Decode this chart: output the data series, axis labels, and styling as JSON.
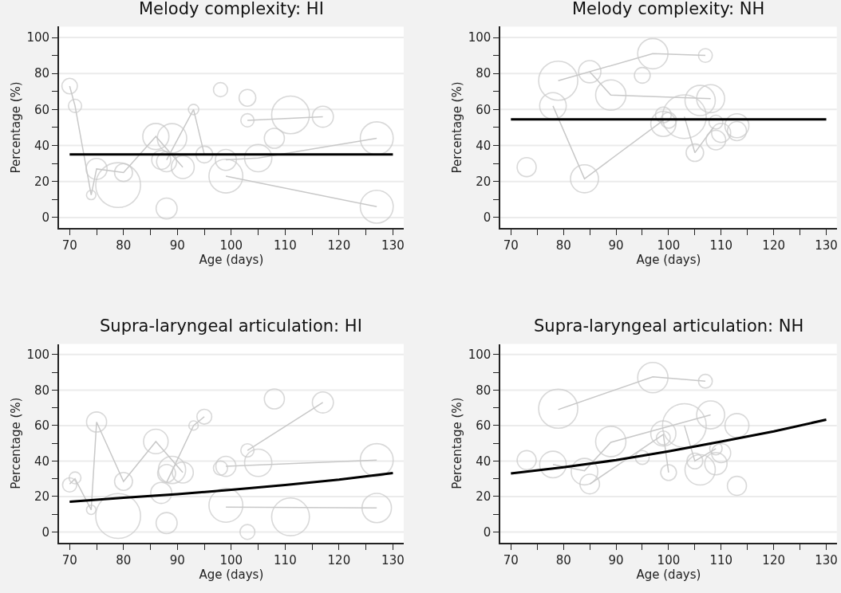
{
  "chart_data": [
    {
      "type": "bubble",
      "title": "Melody complexity: HI",
      "xlabel": "Age (days)",
      "ylabel": "Percentage (%)",
      "xlim": [
        68,
        132
      ],
      "ylim": [
        -6,
        106
      ],
      "xticks": [
        70,
        {
          "value": 75,
          "label": null
        },
        80,
        {
          "value": 85,
          "label": null
        },
        90,
        {
          "value": 95,
          "label": null
        },
        100,
        {
          "value": 105,
          "label": null
        },
        110,
        {
          "value": 115,
          "label": null
        },
        120,
        {
          "value": 125,
          "label": null
        },
        130
      ],
      "yticks": [
        0,
        {
          "value": 10,
          "label": null
        },
        20,
        {
          "value": 30,
          "label": null
        },
        40,
        {
          "value": 50,
          "label": null
        },
        60,
        {
          "value": 70,
          "label": null
        },
        80,
        {
          "value": 90,
          "label": null
        },
        100
      ],
      "grid": "y",
      "series": [
        {
          "color": "#c8c8c8",
          "x": [
            70,
            71,
            74,
            75,
            79,
            80,
            86,
            87,
            88,
            88,
            89,
            91,
            93,
            95,
            98,
            99,
            99,
            103,
            103,
            105,
            108,
            111,
            117,
            127,
            127
          ],
          "values": [
            73,
            62,
            12.5,
            27,
            18,
            25,
            45,
            32,
            31,
            5,
            44,
            28,
            60,
            35,
            71,
            32,
            23,
            66.5,
            54,
            33,
            44,
            57,
            56,
            44,
            6
          ],
          "sizes": [
            0.12,
            0.087,
            0.044,
            0.22,
            1,
            0.16,
            0.34,
            0.18,
            0.2,
            0.22,
            0.43,
            0.26,
            0.054,
            0.14,
            0.1,
            0.22,
            0.57,
            0.14,
            0.087,
            0.37,
            0.2,
            0.71,
            0.22,
            0.54,
            0.54
          ]
        },
        {
          "type": "line",
          "color": "#c8c8c8",
          "x": [
            70,
            71,
            74,
            75,
            80,
            86,
            91
          ],
          "values": [
            73,
            62,
            12.5,
            27,
            25,
            45,
            28
          ]
        },
        {
          "type": "line",
          "color": "#c8c8c8",
          "x": [
            88,
            93,
            95
          ],
          "values": [
            32,
            60,
            35
          ]
        },
        {
          "type": "line",
          "color": "#c8c8c8",
          "x": [
            99,
            105,
            127
          ],
          "values": [
            32,
            33,
            44
          ]
        },
        {
          "type": "line",
          "color": "#c8c8c8",
          "x": [
            99,
            127
          ],
          "values": [
            23,
            6
          ]
        },
        {
          "type": "line",
          "color": "#c8c8c8",
          "x": [
            103,
            117
          ],
          "values": [
            54,
            56
          ]
        },
        {
          "type": "line",
          "color": "#000000",
          "x": [
            70,
            130
          ],
          "values": [
            35,
            35
          ]
        }
      ]
    },
    {
      "type": "bubble",
      "title": "Melody complexity: NH",
      "xlabel": "Age (days)",
      "ylabel": "Percentage (%)",
      "xlim": [
        68,
        132
      ],
      "ylim": [
        -6,
        106
      ],
      "xticks": [
        70,
        {
          "value": 75,
          "label": null
        },
        80,
        {
          "value": 85,
          "label": null
        },
        90,
        {
          "value": 95,
          "label": null
        },
        100,
        {
          "value": 105,
          "label": null
        },
        110,
        {
          "value": 115,
          "label": null
        },
        120,
        {
          "value": 125,
          "label": null
        },
        130
      ],
      "yticks": [
        0,
        {
          "value": 10,
          "label": null
        },
        20,
        {
          "value": 30,
          "label": null
        },
        40,
        {
          "value": 50,
          "label": null
        },
        60,
        {
          "value": 70,
          "label": null
        },
        80,
        {
          "value": 90,
          "label": null
        },
        100
      ],
      "grid": "y",
      "series": [
        {
          "color": "#c8c8c8",
          "x": [
            73,
            78,
            79,
            84,
            85,
            89,
            95,
            97,
            99,
            99,
            100,
            103,
            105,
            106,
            107,
            108,
            109,
            109,
            110,
            113,
            113
          ],
          "values": [
            28,
            62,
            76,
            21.5,
            81,
            68,
            79,
            91,
            57,
            52,
            54,
            56,
            36,
            65,
            90,
            66,
            53,
            43,
            47,
            51,
            48
          ],
          "sizes": [
            0.19,
            0.37,
            0.8,
            0.41,
            0.26,
            0.48,
            0.13,
            0.48,
            0.13,
            0.33,
            0.13,
            1,
            0.16,
            0.48,
            0.1,
            0.41,
            0.1,
            0.2,
            0.19,
            0.3,
            0.19
          ]
        },
        {
          "type": "line",
          "color": "#c8c8c8",
          "x": [
            79,
            97,
            107
          ],
          "values": [
            76,
            91,
            90
          ]
        },
        {
          "type": "line",
          "color": "#c8c8c8",
          "x": [
            85,
            89,
            108
          ],
          "values": [
            81,
            68,
            66
          ]
        },
        {
          "type": "line",
          "color": "#c8c8c8",
          "x": [
            78,
            84,
            99
          ],
          "values": [
            62,
            21.5,
            54
          ]
        },
        {
          "type": "line",
          "color": "#c8c8c8",
          "x": [
            103,
            105,
            108.5
          ],
          "values": [
            56,
            36,
            50
          ]
        },
        {
          "type": "line",
          "color": "#000000",
          "x": [
            70,
            130
          ],
          "values": [
            54.5,
            54.5
          ]
        }
      ]
    },
    {
      "type": "bubble",
      "title": "Supra-laryngeal articulation: HI",
      "xlabel": "Age (days)",
      "ylabel": "Percentage (%)",
      "xlim": [
        68,
        132
      ],
      "ylim": [
        -6,
        106
      ],
      "xticks": [
        70,
        {
          "value": 75,
          "label": null
        },
        80,
        {
          "value": 85,
          "label": null
        },
        90,
        {
          "value": 95,
          "label": null
        },
        100,
        {
          "value": 105,
          "label": null
        },
        110,
        {
          "value": 115,
          "label": null
        },
        120,
        {
          "value": 125,
          "label": null
        },
        130
      ],
      "yticks": [
        0,
        {
          "value": 10,
          "label": null
        },
        20,
        {
          "value": 30,
          "label": null
        },
        40,
        {
          "value": 50,
          "label": null
        },
        60,
        {
          "value": 70,
          "label": null
        },
        80,
        {
          "value": 90,
          "label": null
        },
        100
      ],
      "grid": "y",
      "series": [
        {
          "color": "#c8c8c8",
          "x": [
            70,
            71,
            74,
            75,
            79,
            80,
            86,
            87,
            88,
            88,
            89,
            91,
            93,
            95,
            98,
            99,
            99,
            103,
            103,
            105,
            108,
            111,
            117,
            127,
            127
          ],
          "values": [
            26.5,
            30.5,
            12.5,
            62,
            9,
            28.5,
            51,
            22,
            33,
            5,
            35,
            33.5,
            60,
            65,
            36,
            37,
            15,
            46,
            0,
            39,
            75,
            8.5,
            73,
            40.5,
            13.5
          ],
          "sizes": [
            0.1,
            0.07,
            0.044,
            0.2,
            1,
            0.16,
            0.3,
            0.22,
            0.16,
            0.22,
            0.37,
            0.22,
            0.044,
            0.11,
            0.1,
            0.2,
            0.57,
            0.087,
            0.11,
            0.37,
            0.2,
            0.71,
            0.22,
            0.54,
            0.43
          ]
        },
        {
          "type": "line",
          "color": "#c8c8c8",
          "x": [
            70,
            71,
            74,
            75,
            80,
            86,
            91
          ],
          "values": [
            27,
            30,
            12.5,
            62,
            28.5,
            51,
            33.5
          ]
        },
        {
          "type": "line",
          "color": "#c8c8c8",
          "x": [
            88,
            93,
            95
          ],
          "values": [
            28,
            60,
            65
          ]
        },
        {
          "type": "line",
          "color": "#c8c8c8",
          "x": [
            99,
            127
          ],
          "values": [
            37,
            40.5
          ]
        },
        {
          "type": "line",
          "color": "#c8c8c8",
          "x": [
            99,
            127
          ],
          "values": [
            14,
            13.5
          ]
        },
        {
          "type": "line",
          "color": "#c8c8c8",
          "x": [
            103,
            117
          ],
          "values": [
            46,
            73
          ]
        },
        {
          "type": "line",
          "color": "#000000",
          "x": [
            70,
            80,
            90,
            100,
            110,
            120,
            130
          ],
          "values": [
            17,
            19.3,
            21.3,
            23.8,
            26.5,
            29.5,
            33.2
          ]
        }
      ]
    },
    {
      "type": "bubble",
      "title": "Supra-laryngeal articulation: NH",
      "xlabel": "Age (days)",
      "ylabel": "Percentage (%)",
      "xlim": [
        68,
        132
      ],
      "ylim": [
        -6,
        106
      ],
      "xticks": [
        70,
        {
          "value": 75,
          "label": null
        },
        80,
        {
          "value": 85,
          "label": null
        },
        90,
        {
          "value": 95,
          "label": null
        },
        100,
        {
          "value": 105,
          "label": null
        },
        110,
        {
          "value": 115,
          "label": null
        },
        120,
        {
          "value": 125,
          "label": null
        },
        130
      ],
      "yticks": [
        0,
        {
          "value": 10,
          "label": null
        },
        20,
        {
          "value": 30,
          "label": null
        },
        40,
        {
          "value": 50,
          "label": null
        },
        60,
        {
          "value": 70,
          "label": null
        },
        80,
        {
          "value": 90,
          "label": null
        },
        100
      ],
      "grid": "y",
      "series": [
        {
          "color": "#c8c8c8",
          "x": [
            73,
            78,
            79,
            84,
            85,
            89,
            95,
            97,
            99,
            99,
            100,
            103,
            105,
            106,
            107,
            108,
            109,
            109,
            110,
            113,
            113
          ],
          "values": [
            40.5,
            38,
            69.5,
            34,
            27,
            51,
            42,
            87,
            55.5,
            53,
            33.5,
            60,
            40,
            35,
            85,
            66,
            38.5,
            47,
            44.5,
            60,
            26
          ],
          "sizes": [
            0.19,
            0.37,
            0.8,
            0.37,
            0.2,
            0.48,
            0.1,
            0.48,
            0.33,
            0.1,
            0.13,
            1,
            0.13,
            0.48,
            0.1,
            0.41,
            0.26,
            0.081,
            0.19,
            0.3,
            0.19
          ]
        },
        {
          "type": "line",
          "color": "#c8c8c8",
          "x": [
            79,
            97,
            107
          ],
          "values": [
            69,
            87.5,
            85
          ]
        },
        {
          "type": "line",
          "color": "#c8c8c8",
          "x": [
            78,
            84,
            89,
            108
          ],
          "values": [
            38,
            34.5,
            50.5,
            66
          ]
        },
        {
          "type": "line",
          "color": "#c8c8c8",
          "x": [
            85,
            99,
            100
          ],
          "values": [
            27,
            55,
            33.5
          ]
        },
        {
          "type": "line",
          "color": "#c8c8c8",
          "x": [
            103,
            105,
            109
          ],
          "values": [
            60,
            40,
            47
          ]
        },
        {
          "type": "line",
          "color": "#000000",
          "x": [
            70,
            80,
            90,
            100,
            110,
            120,
            130
          ],
          "values": [
            33,
            36.5,
            40.5,
            45.5,
            51,
            56.7,
            63.3
          ]
        }
      ]
    }
  ]
}
